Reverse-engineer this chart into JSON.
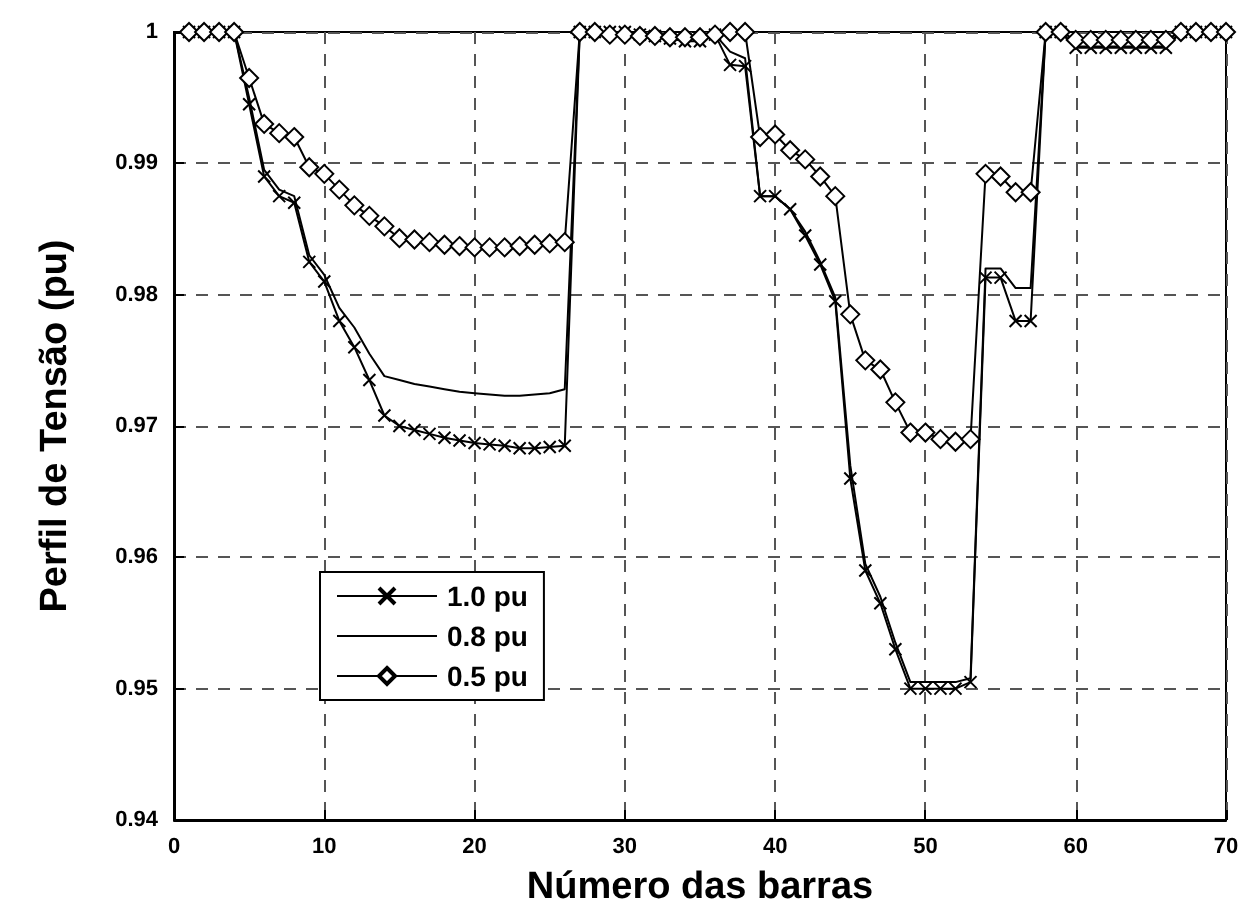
{
  "chart_data": {
    "type": "line",
    "xlabel": "Número das barras",
    "ylabel": "Perfil de Tensão (pu)",
    "x": [
      1,
      2,
      3,
      4,
      5,
      6,
      7,
      8,
      9,
      10,
      11,
      12,
      13,
      14,
      15,
      16,
      17,
      18,
      19,
      20,
      21,
      22,
      23,
      24,
      25,
      26,
      27,
      28,
      29,
      30,
      31,
      32,
      33,
      34,
      35,
      36,
      37,
      38,
      39,
      40,
      41,
      42,
      43,
      44,
      45,
      46,
      47,
      48,
      49,
      50,
      51,
      52,
      53,
      54,
      55,
      56,
      57,
      58,
      59,
      60,
      61,
      62,
      63,
      64,
      65,
      66,
      67,
      68,
      69,
      70
    ],
    "series": [
      {
        "name": "1.0 pu",
        "color": "#000000",
        "marker": "cross",
        "values": [
          1,
          1,
          1,
          1,
          0.9945,
          0.989,
          0.9875,
          0.987,
          0.9825,
          0.981,
          0.978,
          0.976,
          0.9735,
          0.9708,
          0.97,
          0.9697,
          0.9694,
          0.9691,
          0.9689,
          0.9687,
          0.9686,
          0.9685,
          0.9683,
          0.9683,
          0.9684,
          0.9685,
          1,
          1,
          1,
          1,
          0.9998,
          0.9997,
          0.9995,
          0.9993,
          0.9993,
          0.9998,
          0.9975,
          0.9974,
          0.9875,
          0.9875,
          0.9865,
          0.9845,
          0.9823,
          0.9795,
          0.966,
          0.959,
          0.9565,
          0.953,
          0.95,
          0.95,
          0.95,
          0.95,
          0.9505,
          0.9813,
          0.9813,
          0.978,
          0.978,
          1,
          1,
          0.9988,
          0.9988,
          0.9988,
          0.9988,
          0.9988,
          0.9988,
          0.9988,
          1,
          1,
          1,
          1
        ]
      },
      {
        "name": "0.8 pu",
        "color": "#000000",
        "marker": "none",
        "values": [
          1,
          1,
          1,
          1,
          0.995,
          0.9895,
          0.988,
          0.9875,
          0.983,
          0.9815,
          0.979,
          0.9775,
          0.9755,
          0.9738,
          0.9735,
          0.9732,
          0.973,
          0.9728,
          0.9726,
          0.9725,
          0.9724,
          0.9723,
          0.9723,
          0.9724,
          0.9725,
          0.9728,
          1,
          1,
          1,
          1,
          0.9998,
          0.9997,
          0.9996,
          0.9995,
          0.9995,
          0.9998,
          0.9985,
          0.998,
          0.9875,
          0.9875,
          0.9865,
          0.9848,
          0.9825,
          0.9798,
          0.967,
          0.9595,
          0.957,
          0.9535,
          0.9505,
          0.9505,
          0.9505,
          0.9505,
          0.9508,
          0.982,
          0.982,
          0.9805,
          0.9805,
          1,
          1,
          0.9989,
          0.9989,
          0.9989,
          0.9989,
          0.9989,
          0.9989,
          0.9989,
          1,
          1,
          1,
          1
        ]
      },
      {
        "name": "0.5 pu",
        "color": "#000000",
        "marker": "diamond",
        "values": [
          1,
          1,
          1,
          1,
          0.9965,
          0.993,
          0.9923,
          0.992,
          0.9897,
          0.9892,
          0.988,
          0.9868,
          0.986,
          0.9852,
          0.9843,
          0.9842,
          0.984,
          0.9838,
          0.9837,
          0.9836,
          0.9836,
          0.9836,
          0.9837,
          0.9838,
          0.9839,
          0.984,
          1,
          1,
          0.9998,
          0.9998,
          0.9997,
          0.9997,
          0.9996,
          0.9996,
          0.9996,
          0.9998,
          1,
          1,
          0.992,
          0.9922,
          0.991,
          0.9903,
          0.989,
          0.9875,
          0.9785,
          0.975,
          0.9743,
          0.9718,
          0.9695,
          0.9695,
          0.969,
          0.9688,
          0.969,
          0.9892,
          0.989,
          0.9878,
          0.9878,
          1,
          1,
          0.9994,
          0.9994,
          0.9994,
          0.9994,
          0.9994,
          0.9994,
          0.9994,
          1,
          1,
          1,
          1
        ]
      }
    ],
    "xlim": [
      0,
      70
    ],
    "xticks": [
      0,
      10,
      20,
      30,
      40,
      50,
      60,
      70
    ],
    "ylim": [
      0.94,
      1
    ],
    "yticks": [
      0.94,
      0.95,
      0.96,
      0.97,
      0.98,
      0.99,
      1
    ],
    "grid": true,
    "legend": "bottom left"
  }
}
